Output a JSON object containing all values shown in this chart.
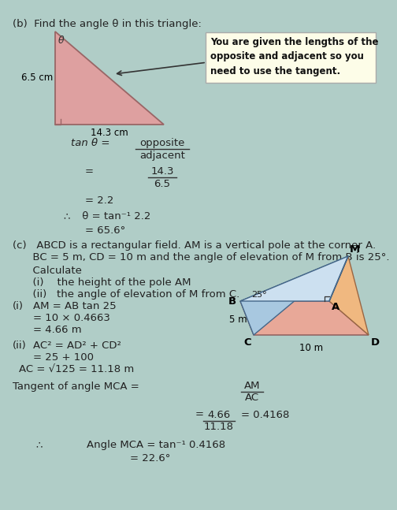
{
  "bg_color": "#b0cdc7",
  "title_b": "(b)  Find the angle θ in this triangle:",
  "box_text": "You are given the lengths of the\nopposite and adjacent so you\nneed to use the tangent.",
  "triangle_label_left": "6.5 cm",
  "triangle_label_bottom": "14.3 cm",
  "tan_line1_num": "opposite",
  "tan_line1_den": "adjacent",
  "tan_line2_num": "14.3",
  "tan_line2_den": "6.5",
  "tan_line3": "= 2.2",
  "tan_line4": " θ = tan⁻¹ 2.2",
  "tan_line5": "= 65.6°",
  "part_c_line1": "(c)   ABCD is a rectangular field. AM is a vertical pole at the corner A.",
  "part_c_line2": "      BC = 5 m, CD = 10 m and the angle of elevation of M from B is 25°.",
  "calc_label": "      Calculate",
  "calc_i": "      (i)    the height of the pole AM",
  "calc_ii": "      (ii)   the angle of elevation of M from C.",
  "sol_i_1": "      (i)     AM = AB tan 25",
  "sol_i_2": "                    = 10 × 0.4663",
  "sol_i_3": "                    = 4.66 m",
  "sol_ii_1": "      (ii)   AC² = AD² + CD²",
  "sol_ii_2": "                    = 25 + 100",
  "sol_ii_3": "      AC = √125 = 11.18 m",
  "tangent_label_left": "      Tangent of angle MCA =",
  "tangent_frac_num": "AM",
  "tangent_frac_den": "AC",
  "tangent_eq_num": "4.66",
  "tangent_eq_den": "11.18",
  "tangent_eq_right": "= 0.4168",
  "final_sym": "∴",
  "final_line1": "Angle MCA = tan⁻¹ 0.4168",
  "final_line2": "= 22.6°",
  "triangle_fill": "#dea0a0",
  "triangle_edge": "#996666",
  "box_fill": "#fdfde8",
  "box_edge": "#aaaaaa",
  "face_base": "#e8a898",
  "face_left": "#a8c8d8",
  "face_right": "#f0c090",
  "face_top": "#c8ddf0"
}
